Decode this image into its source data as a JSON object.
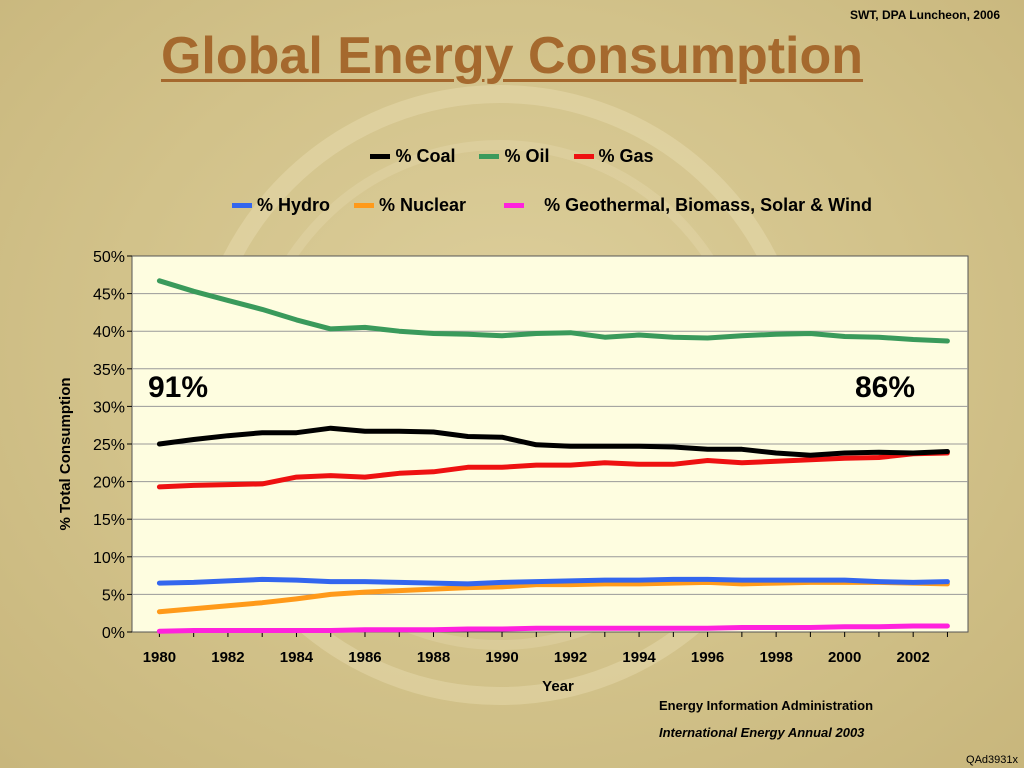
{
  "header_note": "SWT, DPA Luncheon, 2006",
  "title": "Global Energy Consumption",
  "source_line1": "Energy Information Administration",
  "source_line2": "International Energy Annual 2003",
  "footer_code": "QAd3931x",
  "annotations": {
    "left": "91%",
    "right": "86%"
  },
  "chart_data": {
    "type": "line",
    "xlabel": "Year",
    "ylabel": "% Total Consumption",
    "ylim": [
      0,
      50
    ],
    "yticks": [
      0,
      5,
      10,
      15,
      20,
      25,
      30,
      35,
      40,
      45,
      50
    ],
    "ytick_labels": [
      "0%",
      "5%",
      "10%",
      "15%",
      "20%",
      "25%",
      "30%",
      "35%",
      "40%",
      "45%",
      "50%"
    ],
    "xticks": [
      1980,
      1982,
      1984,
      1986,
      1988,
      1990,
      1992,
      1994,
      1996,
      1998,
      2000,
      2002
    ],
    "grid": true,
    "legend": "top",
    "x": [
      1980,
      1981,
      1982,
      1983,
      1984,
      1985,
      1986,
      1987,
      1988,
      1989,
      1990,
      1991,
      1992,
      1993,
      1994,
      1995,
      1996,
      1997,
      1998,
      1999,
      2000,
      2001,
      2002,
      2003
    ],
    "series": [
      {
        "name": "% Coal",
        "color": "#000000",
        "legend_row": 1,
        "values": [
          25.0,
          25.6,
          26.1,
          26.5,
          26.5,
          27.1,
          26.7,
          26.7,
          26.6,
          26.0,
          25.9,
          24.9,
          24.7,
          24.7,
          24.7,
          24.6,
          24.3,
          24.3,
          23.8,
          23.5,
          23.8,
          23.9,
          23.8,
          24.0
        ]
      },
      {
        "name": "% Oil",
        "color": "#3a9a5b",
        "legend_row": 1,
        "values": [
          46.7,
          45.3,
          44.1,
          42.9,
          41.5,
          40.3,
          40.5,
          40.0,
          39.7,
          39.6,
          39.4,
          39.7,
          39.8,
          39.2,
          39.5,
          39.2,
          39.1,
          39.4,
          39.6,
          39.7,
          39.3,
          39.2,
          38.9,
          38.7
        ]
      },
      {
        "name": "% Gas",
        "color": "#ee1111",
        "legend_row": 1,
        "values": [
          19.3,
          19.5,
          19.6,
          19.7,
          20.6,
          20.8,
          20.6,
          21.1,
          21.3,
          21.9,
          21.9,
          22.2,
          22.2,
          22.5,
          22.3,
          22.3,
          22.8,
          22.5,
          22.7,
          22.9,
          23.1,
          23.2,
          23.7,
          23.8
        ]
      },
      {
        "name": "% Hydro",
        "color": "#3366ee",
        "legend_row": 2,
        "values": [
          6.5,
          6.6,
          6.8,
          7.0,
          6.9,
          6.7,
          6.7,
          6.6,
          6.5,
          6.4,
          6.6,
          6.7,
          6.8,
          6.9,
          6.9,
          7.0,
          7.0,
          6.9,
          6.9,
          6.9,
          6.9,
          6.7,
          6.6,
          6.7
        ]
      },
      {
        "name": "% Nuclear",
        "color": "#ff9a1a",
        "legend_row": 2,
        "values": [
          2.7,
          3.1,
          3.5,
          3.9,
          4.4,
          5.0,
          5.3,
          5.5,
          5.7,
          5.9,
          6.0,
          6.3,
          6.3,
          6.4,
          6.4,
          6.5,
          6.6,
          6.4,
          6.5,
          6.6,
          6.6,
          6.6,
          6.5,
          6.4
        ]
      },
      {
        "name": "% Geothermal, Biomass, Solar & Wind",
        "color": "#ff22dd",
        "legend_row": 2,
        "values": [
          0.1,
          0.2,
          0.2,
          0.2,
          0.2,
          0.2,
          0.3,
          0.3,
          0.3,
          0.4,
          0.4,
          0.5,
          0.5,
          0.5,
          0.5,
          0.5,
          0.5,
          0.6,
          0.6,
          0.6,
          0.7,
          0.7,
          0.8,
          0.8
        ]
      }
    ]
  }
}
